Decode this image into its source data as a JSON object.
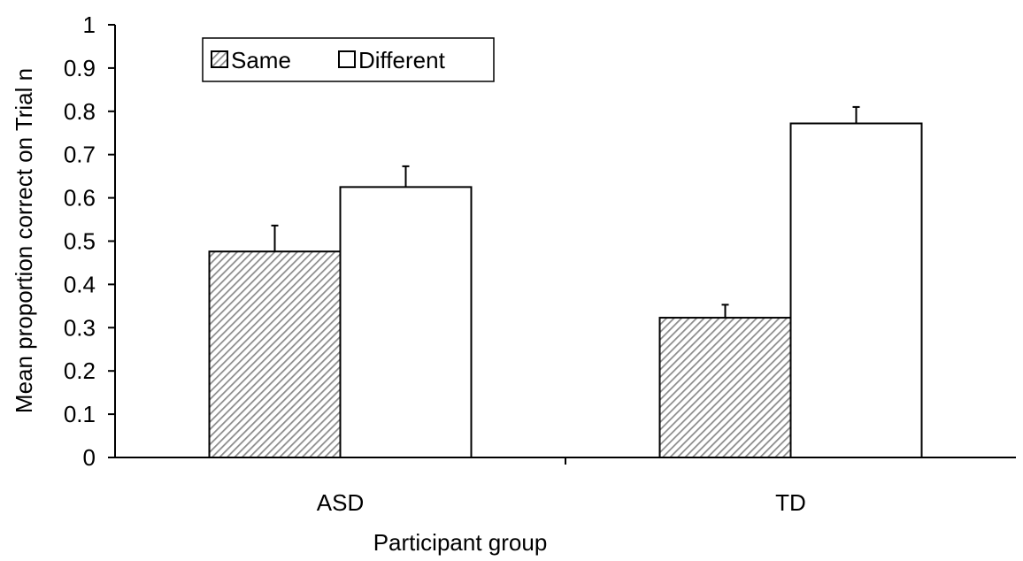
{
  "chart_data": {
    "type": "bar",
    "title": "",
    "xlabel": "Participant group",
    "ylabel": "Mean proportion correct on Trial n",
    "categories": [
      "ASD",
      "TD"
    ],
    "series": [
      {
        "name": "Same",
        "values": [
          0.476,
          0.323
        ],
        "errors": [
          0.06,
          0.03
        ],
        "pattern": "diagonal-hatch"
      },
      {
        "name": "Different",
        "values": [
          0.625,
          0.772
        ],
        "errors": [
          0.048,
          0.038
        ],
        "pattern": "none"
      }
    ],
    "ylim": [
      0,
      1
    ],
    "yticks": [
      "0",
      "0.1",
      "0.2",
      "0.3",
      "0.4",
      "0.5",
      "0.6",
      "0.7",
      "0.8",
      "0.9",
      "1"
    ],
    "grid": false,
    "legend_position": "top-left",
    "colors": {
      "stroke": "#000000",
      "hatch": "#8c8c8c",
      "fill_open": "#ffffff"
    }
  }
}
